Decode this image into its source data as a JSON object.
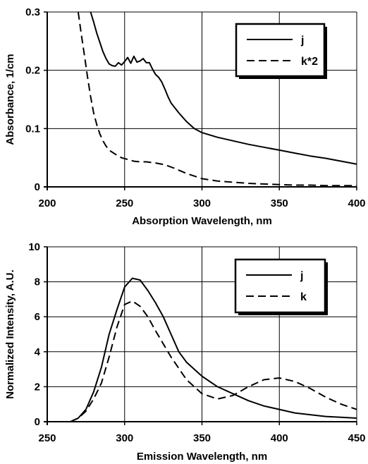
{
  "chart_data": [
    {
      "type": "line",
      "xlabel": "Absorption Wavelength, nm",
      "ylabel": "Absorbance, 1/cm",
      "xlim": [
        200,
        400
      ],
      "ylim": [
        0,
        0.3
      ],
      "xticks": [
        200,
        250,
        300,
        350,
        400
      ],
      "yticks": [
        0,
        0.1,
        0.2,
        0.3
      ],
      "xtick_labels": [
        "200",
        "250",
        "300",
        "350",
        "400"
      ],
      "ytick_labels": [
        "0",
        "0.1",
        "0.2",
        "0.3"
      ],
      "grid": true,
      "legend_position": "top-right",
      "series": [
        {
          "name": "j",
          "style": "solid",
          "x": [
            228,
            230,
            232,
            234,
            236,
            238,
            240,
            242,
            244,
            246,
            248,
            250,
            252,
            254,
            256,
            258,
            260,
            262,
            264,
            266,
            268,
            270,
            272,
            274,
            276,
            278,
            280,
            285,
            290,
            295,
            300,
            310,
            320,
            330,
            340,
            350,
            360,
            370,
            380,
            390,
            400
          ],
          "y": [
            0.3,
            0.283,
            0.264,
            0.248,
            0.232,
            0.22,
            0.211,
            0.208,
            0.207,
            0.213,
            0.209,
            0.215,
            0.222,
            0.212,
            0.224,
            0.214,
            0.216,
            0.22,
            0.213,
            0.213,
            0.202,
            0.193,
            0.188,
            0.18,
            0.168,
            0.155,
            0.144,
            0.127,
            0.112,
            0.1,
            0.093,
            0.085,
            0.079,
            0.073,
            0.068,
            0.063,
            0.058,
            0.053,
            0.049,
            0.044,
            0.039
          ]
        },
        {
          "name": "k*2",
          "style": "dashed",
          "x": [
            220,
            222,
            224,
            226,
            228,
            230,
            232,
            234,
            236,
            238,
            240,
            244,
            248,
            252,
            256,
            260,
            264,
            270,
            276,
            282,
            290,
            300,
            310,
            320,
            330,
            340,
            350,
            360,
            370,
            380,
            390,
            400
          ],
          "y": [
            0.3,
            0.262,
            0.226,
            0.189,
            0.155,
            0.127,
            0.107,
            0.091,
            0.079,
            0.07,
            0.063,
            0.056,
            0.05,
            0.047,
            0.044,
            0.043,
            0.043,
            0.041,
            0.038,
            0.032,
            0.023,
            0.014,
            0.01,
            0.008,
            0.006,
            0.005,
            0.004,
            0.003,
            0.003,
            0.002,
            0.002,
            0.002
          ]
        }
      ]
    },
    {
      "type": "line",
      "xlabel": "Emission Wavelength, nm",
      "ylabel": "Normalized Intensity, A.U.",
      "xlim": [
        250,
        450
      ],
      "ylim": [
        0,
        10
      ],
      "xticks": [
        250,
        300,
        350,
        400,
        450
      ],
      "yticks": [
        0,
        2,
        4,
        6,
        8,
        10
      ],
      "xtick_labels": [
        "250",
        "300",
        "350",
        "400",
        "450"
      ],
      "ytick_labels": [
        "0",
        "2",
        "4",
        "6",
        "8",
        "10"
      ],
      "grid": true,
      "legend_position": "top-right",
      "series": [
        {
          "name": "j",
          "style": "solid",
          "x": [
            265,
            270,
            275,
            280,
            285,
            290,
            295,
            300,
            305,
            310,
            315,
            320,
            325,
            330,
            335,
            340,
            350,
            360,
            370,
            380,
            390,
            400,
            410,
            420,
            430,
            440,
            450
          ],
          "y": [
            0,
            0.2,
            0.7,
            1.7,
            3.1,
            5.0,
            6.4,
            7.7,
            8.2,
            8.1,
            7.5,
            6.8,
            6.0,
            5.0,
            4.0,
            3.4,
            2.6,
            2.0,
            1.6,
            1.2,
            0.9,
            0.7,
            0.5,
            0.4,
            0.3,
            0.25,
            0.2
          ]
        },
        {
          "name": "k",
          "style": "dashed",
          "x": [
            265,
            270,
            275,
            280,
            285,
            290,
            295,
            300,
            305,
            310,
            315,
            320,
            330,
            340,
            350,
            360,
            370,
            380,
            390,
            400,
            410,
            420,
            430,
            440,
            450
          ],
          "y": [
            0,
            0.2,
            0.6,
            1.3,
            2.2,
            3.7,
            5.4,
            6.7,
            6.9,
            6.6,
            6.0,
            5.2,
            3.7,
            2.4,
            1.6,
            1.3,
            1.5,
            2.0,
            2.4,
            2.5,
            2.3,
            1.9,
            1.4,
            1.0,
            0.7
          ]
        }
      ]
    }
  ]
}
